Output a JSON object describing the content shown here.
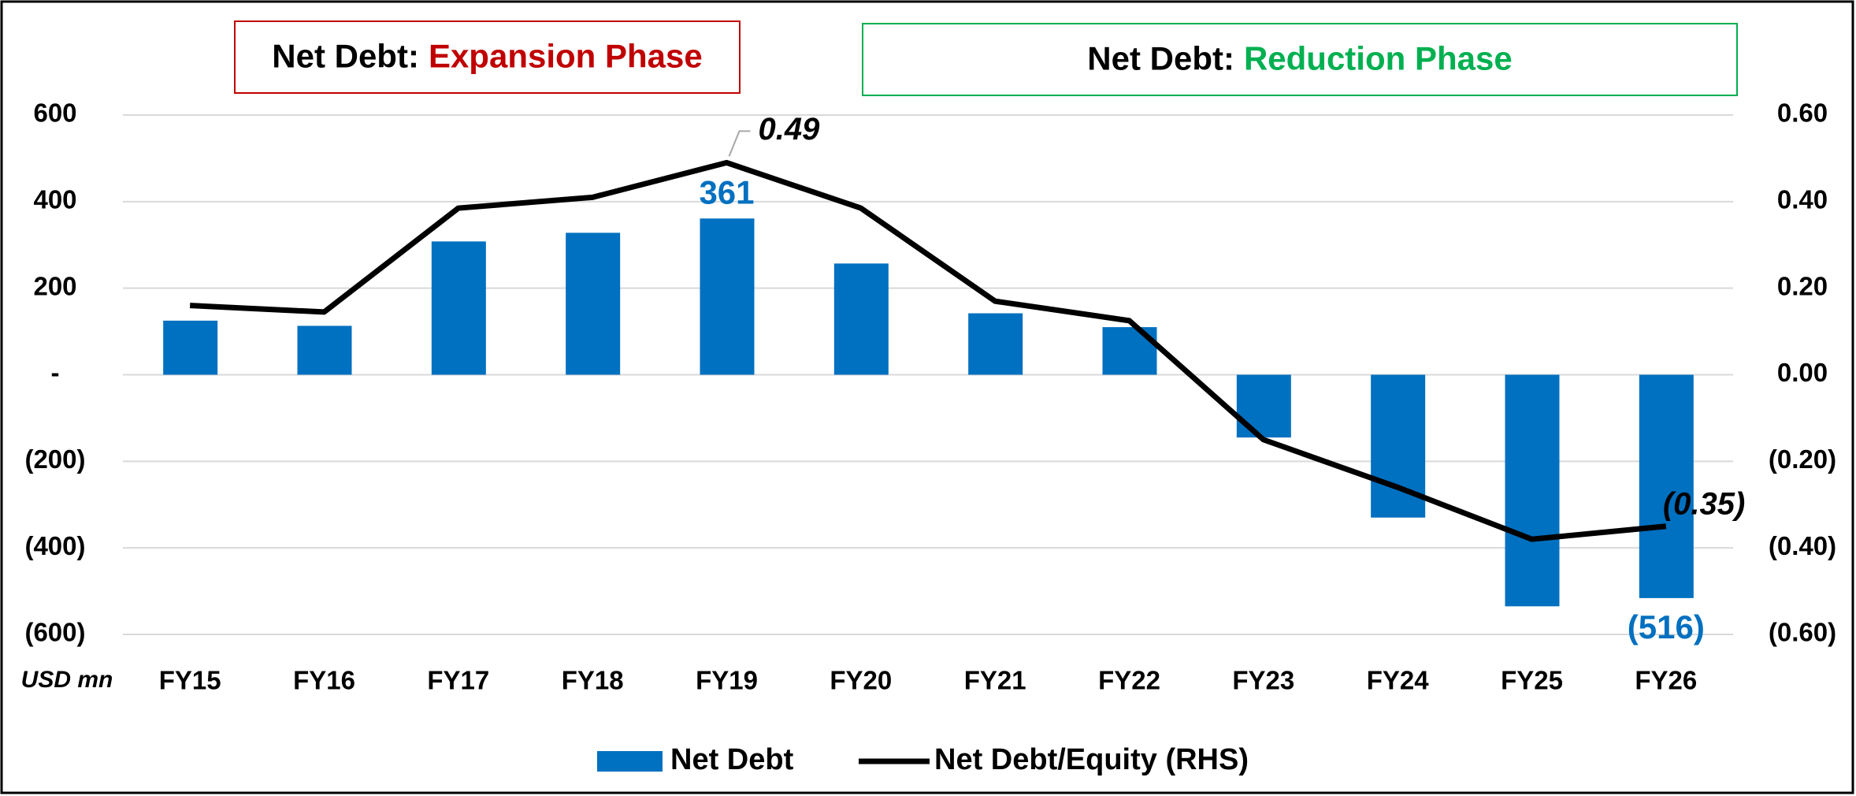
{
  "chart_data": {
    "type": "bar",
    "annotations": [
      {
        "prefix": "Net Debt:",
        "phase": "Expansion Phase",
        "color": "#c00000",
        "border": "#c00000"
      },
      {
        "prefix": "Net Debt:",
        "phase": "Reduction Phase",
        "color": "#00b050",
        "border": "#00b050"
      }
    ],
    "ylabel": "USD mn",
    "categories": [
      "FY15",
      "FY16",
      "FY17",
      "FY18",
      "FY19",
      "FY20",
      "FY21",
      "FY22",
      "FY23",
      "FY24",
      "FY25",
      "FY26"
    ],
    "series": [
      {
        "name": "Net Debt",
        "type": "bar",
        "color": "#0070c0",
        "values": [
          125,
          113,
          308,
          328,
          361,
          257,
          142,
          110,
          -145,
          -330,
          -535,
          -516
        ],
        "value_labels": [
          null,
          null,
          null,
          null,
          "361",
          null,
          null,
          null,
          null,
          null,
          null,
          "(516)"
        ]
      },
      {
        "name": "Net Debt/Equity (RHS)",
        "type": "line",
        "axis": "y2",
        "color": "#000000",
        "values": [
          0.16,
          0.145,
          0.385,
          0.41,
          0.49,
          0.385,
          0.17,
          0.125,
          -0.15,
          -0.26,
          -0.38,
          -0.35
        ],
        "value_labels": [
          null,
          null,
          null,
          null,
          "0.49",
          null,
          null,
          null,
          null,
          null,
          null,
          "(0.35)"
        ]
      }
    ],
    "ylim": [
      -600,
      600
    ],
    "yticks": [
      {
        "value": 600,
        "label": "600"
      },
      {
        "value": 400,
        "label": "400"
      },
      {
        "value": 200,
        "label": "200"
      },
      {
        "value": 0,
        "label": "-"
      },
      {
        "value": -200,
        "label": "(200)"
      },
      {
        "value": -400,
        "label": "(400)"
      },
      {
        "value": -600,
        "label": "(600)"
      }
    ],
    "y2lim": [
      -0.6,
      0.6
    ],
    "y2ticks": [
      {
        "value": 0.6,
        "label": "0.60"
      },
      {
        "value": 0.4,
        "label": "0.40"
      },
      {
        "value": 0.2,
        "label": "0.20"
      },
      {
        "value": 0,
        "label": "0.00"
      },
      {
        "value": -0.2,
        "label": "(0.20)"
      },
      {
        "value": -0.4,
        "label": "(0.40)"
      },
      {
        "value": -0.6,
        "label": "(0.60)"
      }
    ],
    "grid": true,
    "legend": "bottom"
  }
}
